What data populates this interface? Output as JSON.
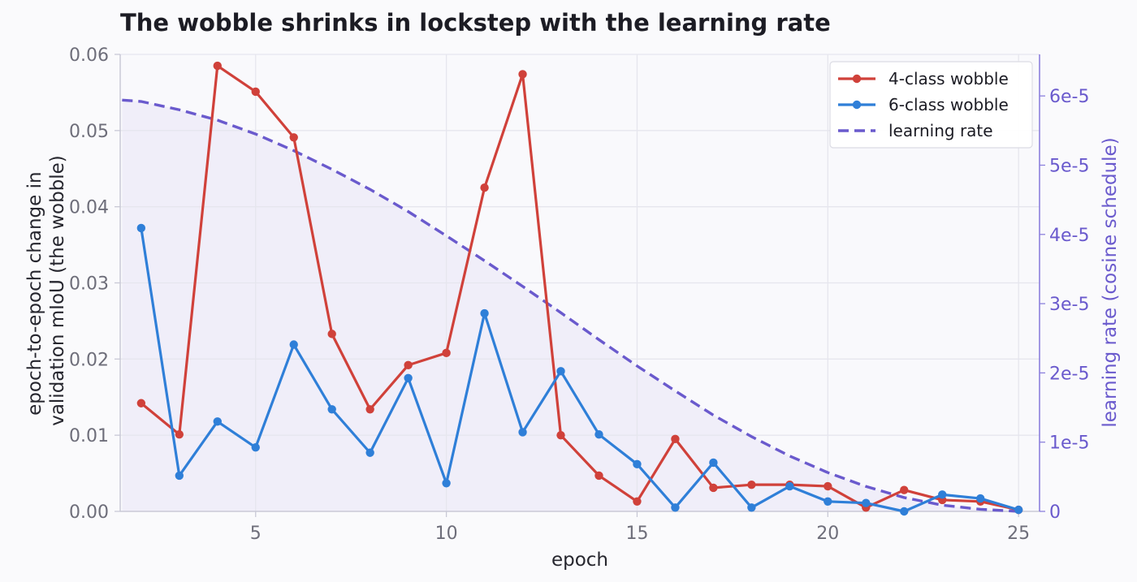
{
  "chart_data": {
    "type": "line",
    "title": "The wobble shrinks in lockstep with the learning rate",
    "xlabel": "epoch",
    "ylabel_lines": [
      "epoch-to-epoch change in",
      "validation mIoU  (the wobble)"
    ],
    "ylabel_right": "learning rate  (cosine schedule)",
    "xlim": [
      1.45,
      25.55
    ],
    "ylim": [
      0,
      0.06
    ],
    "ylim_right": [
      0,
      6.6e-05
    ],
    "x_ticks": [
      5,
      10,
      15,
      20,
      25
    ],
    "x_tick_labels": [
      "5",
      "10",
      "15",
      "20",
      "25"
    ],
    "y_ticks": [
      0,
      0.01,
      0.02,
      0.03,
      0.04,
      0.05,
      0.06
    ],
    "y_tick_labels": [
      "0.00",
      "0.01",
      "0.02",
      "0.03",
      "0.04",
      "0.05",
      "0.06"
    ],
    "y_right_ticks": [
      0,
      1e-05,
      2e-05,
      3e-05,
      4e-05,
      5e-05,
      6e-05
    ],
    "y_right_tick_labels": [
      "0",
      "1e-5",
      "2e-5",
      "3e-5",
      "4e-5",
      "5e-5",
      "6e-5"
    ],
    "grid": true,
    "legend_position": "top-right",
    "x": [
      2,
      3,
      4,
      5,
      6,
      7,
      8,
      9,
      10,
      11,
      12,
      13,
      14,
      15,
      16,
      17,
      18,
      19,
      20,
      21,
      22,
      23,
      24,
      25
    ],
    "series": [
      {
        "name": "4-class wobble",
        "axis": "left",
        "color": "#d0413a",
        "style": "solid-marker",
        "values": [
          0.0142,
          0.0101,
          0.0585,
          0.0551,
          0.0491,
          0.0233,
          0.0134,
          0.0192,
          0.0208,
          0.0425,
          0.0574,
          0.01,
          0.0047,
          0.0013,
          0.0095,
          0.0031,
          0.0035,
          0.0035,
          0.0033,
          0.0005,
          0.0028,
          0.0015,
          0.0013,
          0.0002
        ]
      },
      {
        "name": "6-class wobble",
        "axis": "left",
        "color": "#2f7fd8",
        "style": "solid-marker",
        "values": [
          0.0372,
          0.0047,
          0.0118,
          0.0084,
          0.0219,
          0.0134,
          0.0077,
          0.0175,
          0.0037,
          0.026,
          0.0104,
          0.0184,
          0.0101,
          0.0062,
          0.0005,
          0.0064,
          0.0005,
          0.0033,
          0.0013,
          0.0011,
          0.0,
          0.0022,
          0.0017,
          0.0002
        ]
      },
      {
        "name": "learning rate",
        "axis": "right",
        "color": "#6a5acd",
        "style": "dashed",
        "fill": "#ece9f8",
        "x": [
          1.5,
          2,
          3,
          4,
          5,
          6,
          7,
          8,
          9,
          10,
          11,
          12,
          13,
          14,
          15,
          16,
          17,
          18,
          19,
          20,
          21,
          22,
          23,
          24,
          25
        ],
        "values": [
          5.94e-05,
          5.92e-05,
          5.8e-05,
          5.65e-05,
          5.45e-05,
          5.21e-05,
          4.94e-05,
          4.65e-05,
          4.33e-05,
          3.98e-05,
          3.62e-05,
          3.25e-05,
          2.87e-05,
          2.48e-05,
          2.1e-05,
          1.74e-05,
          1.39e-05,
          1.08e-05,
          8e-06,
          5.6e-06,
          3.6e-06,
          2e-06,
          9e-07,
          3e-07,
          0.0
        ]
      }
    ]
  }
}
